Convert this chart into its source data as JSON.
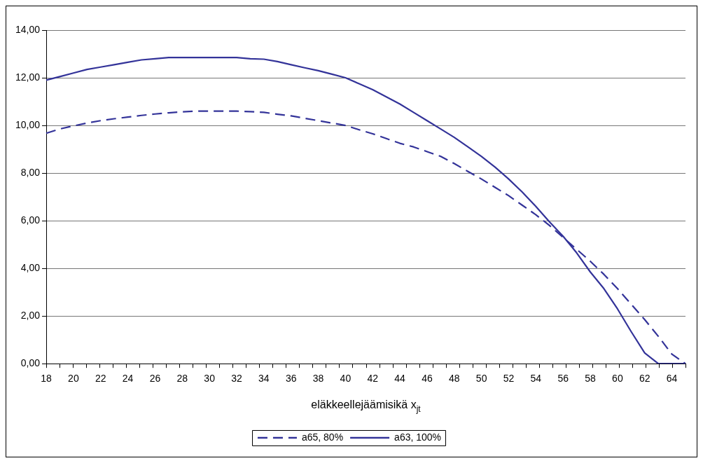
{
  "chart_data": {
    "type": "line",
    "xlabel": "eläkkeellejäämisikä x$_{jt}$",
    "categories": [
      "18",
      null,
      "20",
      null,
      "22",
      null,
      "24",
      null,
      "26",
      null,
      "28",
      null,
      "30",
      null,
      "32",
      null,
      "34",
      null,
      "36",
      null,
      "38",
      null,
      "40",
      null,
      "42",
      null,
      "44",
      null,
      "46",
      null,
      "48",
      null,
      "50",
      null,
      "52",
      null,
      "54",
      null,
      "56",
      null,
      "58",
      null,
      "60",
      null,
      "62",
      null,
      "64",
      null
    ],
    "series": [
      {
        "name": "a65, 80%",
        "color": "#333399",
        "line_style": "dashed",
        "values": [
          9.67,
          9.85,
          9.98,
          10.1,
          10.2,
          10.28,
          10.35,
          10.42,
          10.48,
          10.53,
          10.57,
          10.6,
          10.6,
          10.6,
          10.6,
          10.58,
          10.55,
          10.47,
          10.4,
          10.3,
          10.2,
          10.1,
          10.0,
          9.82,
          9.65,
          9.45,
          9.25,
          9.1,
          8.9,
          8.7,
          8.4,
          8.07,
          7.75,
          7.4,
          7.05,
          6.65,
          6.25,
          5.8,
          5.3,
          4.8,
          4.3,
          3.75,
          3.15,
          2.5,
          1.85,
          1.15,
          0.4,
          0
        ]
      },
      {
        "name": "a63, 100%",
        "color": "#333399",
        "line_style": "solid",
        "values": [
          11.9,
          12.05,
          12.2,
          12.35,
          12.45,
          12.55,
          12.65,
          12.75,
          12.8,
          12.85,
          12.85,
          12.85,
          12.85,
          12.85,
          12.85,
          12.8,
          12.78,
          12.68,
          12.55,
          12.42,
          12.3,
          12.15,
          12.0,
          11.75,
          11.5,
          11.2,
          10.9,
          10.55,
          10.2,
          9.85,
          9.5,
          9.1,
          8.7,
          8.25,
          7.75,
          7.2,
          6.6,
          5.95,
          5.35,
          4.65,
          3.85,
          3.15,
          2.3,
          1.35,
          0.45,
          0,
          0,
          0
        ]
      }
    ],
    "ylim": [
      0,
      14
    ],
    "yticks": [
      {
        "value": 0,
        "label": "0,00"
      },
      {
        "value": 2,
        "label": "2,00"
      },
      {
        "value": 4,
        "label": "4,00"
      },
      {
        "value": 6,
        "label": "6,00"
      },
      {
        "value": 8,
        "label": "8,00"
      },
      {
        "value": 10,
        "label": "10,00"
      },
      {
        "value": 12,
        "label": "12,00"
      },
      {
        "value": 14,
        "label": "14,00"
      }
    ],
    "grid": "y",
    "legend": "bottom",
    "marker": "none"
  }
}
